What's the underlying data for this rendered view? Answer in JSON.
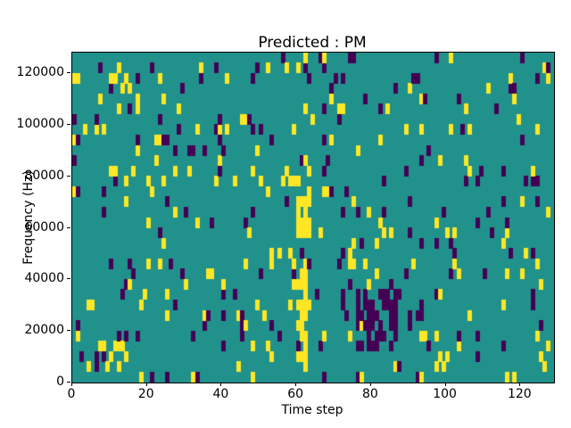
{
  "chart_data": {
    "type": "heatmap",
    "title": "Predicted : PM",
    "xlabel": "Time step",
    "ylabel": "Frequency (Hz)",
    "x_range": [
      0,
      129
    ],
    "y_range": [
      0,
      128000
    ],
    "x_ticks": [
      0,
      20,
      40,
      60,
      80,
      100,
      120
    ],
    "y_ticks": [
      0,
      20000,
      40000,
      60000,
      80000,
      100000,
      120000
    ],
    "grid": {
      "cols": 129,
      "rows": 32,
      "freq_bin_hz": 4000
    },
    "colors": {
      "background": "#21918c",
      "high": "#fde725",
      "low": "#440154",
      "axis": "#000000"
    },
    "legend": "none",
    "grid_lines": "off",
    "noise": {
      "high_density": 0.05,
      "low_density": 0.042,
      "seed": 42
    },
    "clusters": [
      {
        "value": "high",
        "t0": 60,
        "t1": 63,
        "f0": 14,
        "f1": 17,
        "density": 0.9,
        "note": "bright yellow blob ~56-72 kHz around time 60-63"
      },
      {
        "value": "high",
        "t0": 60,
        "t1": 62,
        "f0": 2,
        "f1": 10,
        "density": 0.72,
        "note": "yellow vertical band ~8-44 kHz around time 60-62"
      },
      {
        "value": "low",
        "t0": 76,
        "t1": 86,
        "f0": 3,
        "f1": 8,
        "density": 0.55,
        "note": "dark purple mass ~12-36 kHz around time 76-86"
      },
      {
        "value": "high",
        "t0": 8,
        "t1": 13,
        "f0": 1,
        "f1": 3,
        "density": 0.5,
        "note": "yellow patch low frequency near time 8-13"
      },
      {
        "value": "high",
        "t0": 73,
        "t1": 75,
        "f0": 9,
        "f1": 13,
        "density": 0.4,
        "note": "yellow strip mid frequency near time 73-75"
      }
    ]
  }
}
